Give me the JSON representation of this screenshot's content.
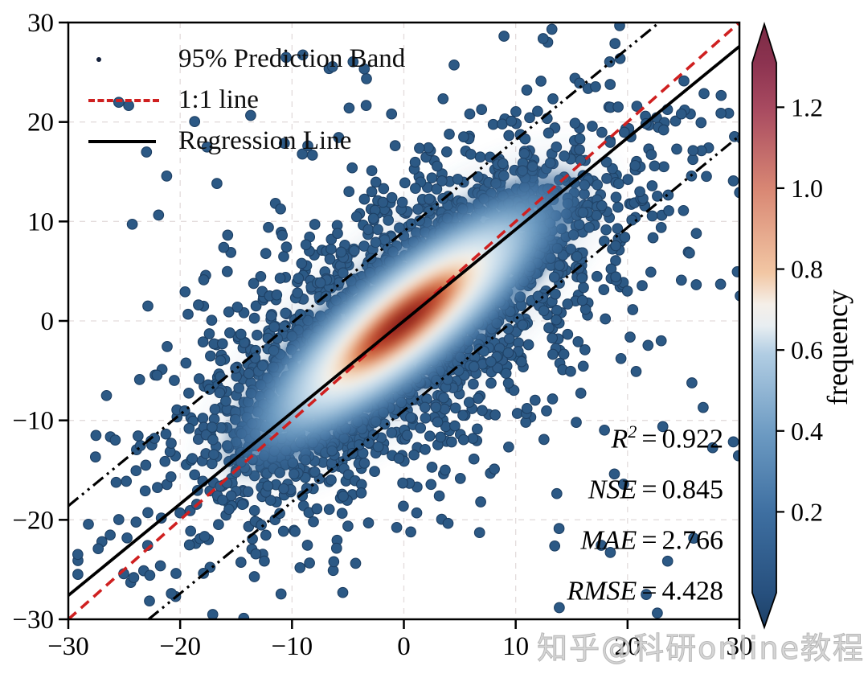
{
  "watermark": {
    "text": "知乎@科研online教程"
  },
  "chart_data": {
    "type": "scatter-density",
    "title": "",
    "xlabel": "",
    "ylabel": "",
    "xlim": [
      -30,
      30
    ],
    "ylim": [
      -30,
      30
    ],
    "grid": "dashed-major",
    "equals": "=",
    "xticks": {
      "values": [
        -30,
        -20,
        -10,
        0,
        10,
        20,
        30
      ],
      "labels": [
        "−30",
        "−20",
        "−10",
        "0",
        "10",
        "20",
        "30"
      ]
    },
    "yticks": {
      "values": [
        30,
        20,
        10,
        0,
        -10,
        -20,
        -30
      ],
      "labels": [
        "30",
        "20",
        "10",
        "0",
        "−10",
        "−20",
        "−30"
      ]
    },
    "legend_items": [
      {
        "label": "95% Prediction Band",
        "marker": "dot"
      },
      {
        "label": "1:1 line",
        "marker": "red-dash"
      },
      {
        "label": "Regression Line",
        "marker": "black-line"
      }
    ],
    "lines": {
      "one_to_one": {
        "label": "1:1 line",
        "slope": 1,
        "intercept": 0,
        "color": "#cf2020",
        "style": "dashed"
      },
      "regression": {
        "label": "Regression Line",
        "slope": 0.92,
        "intercept": 0,
        "color": "#000000",
        "style": "solid"
      },
      "prediction_band": {
        "label": "95% Prediction Band",
        "slope": 0.92,
        "offset": 9,
        "color": "#000000",
        "style": "dash-dot-dot"
      }
    },
    "stats": [
      {
        "label": "R",
        "sup": "2",
        "value": "0.922"
      },
      {
        "label": "NSE",
        "sup": "",
        "value": "0.845"
      },
      {
        "label": "MAE",
        "sup": "",
        "value": "2.766"
      },
      {
        "label": "RMSE",
        "sup": "",
        "value": "4.428"
      }
    ],
    "colorbar": {
      "label": "frequency",
      "tick_values": [
        1.2,
        1.0,
        0.8,
        0.6,
        0.4,
        0.2
      ],
      "tick_labels": [
        "1.2",
        "1.0",
        "0.8",
        "0.6",
        "0.4",
        "0.2"
      ],
      "vmin": 0,
      "vmax": 1.31,
      "extend": "both",
      "gradient_stops": [
        {
          "t": 0.0,
          "c": "#1d4066"
        },
        {
          "t": 0.057,
          "c": "#27507e"
        },
        {
          "t": 0.19,
          "c": "#3e6fa1"
        },
        {
          "t": 0.32,
          "c": "#6c9ac2"
        },
        {
          "t": 0.453,
          "c": "#b1cde3"
        },
        {
          "t": 0.5,
          "c": "#e8eef1"
        },
        {
          "t": 0.535,
          "c": "#f5efe9"
        },
        {
          "t": 0.587,
          "c": "#f2c7a4"
        },
        {
          "t": 0.724,
          "c": "#d98874"
        },
        {
          "t": 0.86,
          "c": "#a84a60"
        },
        {
          "t": 0.936,
          "c": "#8c3350"
        },
        {
          "t": 1.0,
          "c": "#7b2b45"
        }
      ]
    },
    "point_style": {
      "fill": "#2c5985",
      "edge": "#1d3f63",
      "radius_px": 6.3
    },
    "density_gradient": [
      {
        "t": 0.0,
        "c": "#801d1d",
        "o": 1
      },
      {
        "t": 0.1,
        "c": "#9e2a20",
        "o": 1
      },
      {
        "t": 0.18,
        "c": "#c04a2e",
        "o": 1
      },
      {
        "t": 0.26,
        "c": "#e08a5c",
        "o": 1
      },
      {
        "t": 0.33,
        "c": "#f3d3b4",
        "o": 1
      },
      {
        "t": 0.4,
        "c": "#f4f1ea",
        "o": 1
      },
      {
        "t": 0.48,
        "c": "#d3e4ef",
        "o": 1
      },
      {
        "t": 0.58,
        "c": "#a6c6de",
        "o": 1
      },
      {
        "t": 0.7,
        "c": "#6d9cc3",
        "o": 0.95
      },
      {
        "t": 0.85,
        "c": "#3f6f9f",
        "o": 0.75
      },
      {
        "t": 1.0,
        "c": "#2d5a86",
        "o": 0
      }
    ],
    "halo_gradient": [
      {
        "t": 0.0,
        "c": "#4876a5",
        "o": 0.4
      },
      {
        "t": 0.55,
        "c": "#4876a5",
        "o": 0.22
      },
      {
        "t": 1.0,
        "c": "#4876a5",
        "o": 0
      }
    ],
    "sim": {
      "seed": 7,
      "core_n": 2300,
      "core_sigma_along": 11.5,
      "core_sigma_perp": 4.7,
      "spread_n": 500,
      "spread_sigma_along": 17.5,
      "spread_sigma_perp": 8.8,
      "uniform_n": 70
    }
  }
}
